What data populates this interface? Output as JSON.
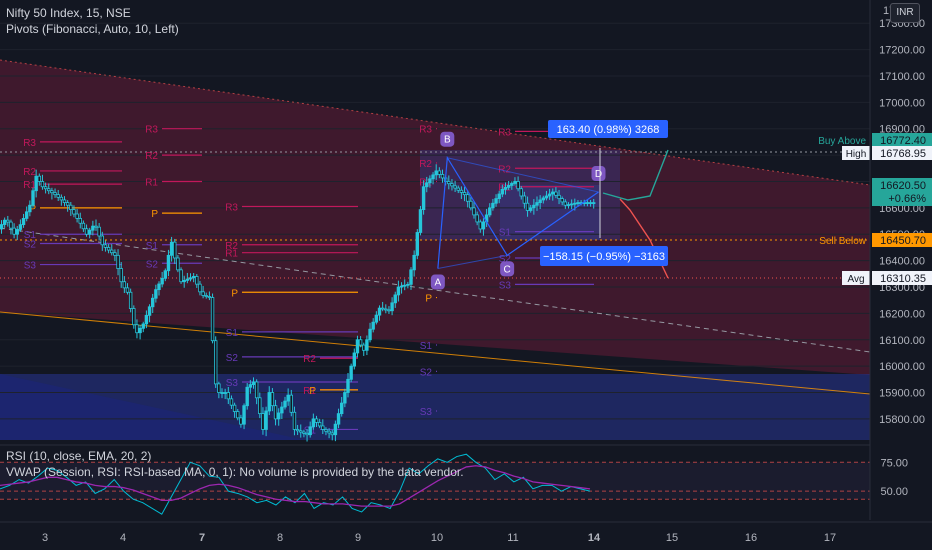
{
  "header": {
    "symbol_line": "Nifty 50 Index, 15, NSE",
    "indicator_line": "Pivots (Fibonacci, Auto, 10, Left)",
    "currency_button": "INR"
  },
  "colors": {
    "background": "#131722",
    "candle": "#26c6da",
    "pivot_R": "#c2185b",
    "pivot_S": "#673ab7",
    "pivot_P": "#ff9800",
    "rsi": "#00bcd4",
    "rsi_ma": "#9c27b0",
    "channel_fill": "#5d1a35",
    "band_fill": "#283593",
    "forecast_up": "#26a69a",
    "forecast_down": "#ef5350",
    "measure": "#2962ff"
  },
  "chart_data": [
    {
      "type": "line",
      "subtype": "candlestick",
      "title": "Nifty 50 Index, 15, NSE",
      "x_tick_labels": [
        "3",
        "4",
        "7",
        "8",
        "9",
        "10",
        "11",
        "14",
        "15",
        "16",
        "17"
      ],
      "y_tick_labels": [
        "15800.00",
        "15900.00",
        "16000.00",
        "16100.00",
        "16200.00",
        "16300.00",
        "16400.00",
        "16500.00",
        "16600.00",
        "16700.00",
        "16800.00",
        "16900.00",
        "17000.00",
        "17100.00",
        "17200.00",
        "17300.00"
      ],
      "y_top_partial_label": "17",
      "ylim": [
        15720,
        17350
      ],
      "price_path": {
        "x": [
          0,
          1.2,
          2.5,
          3.6,
          5.0,
          6.0,
          7.0,
          9.0,
          10.0,
          11.0,
          12.8,
          14.0,
          15.3,
          16.5,
          18.5,
          19.6,
          20.5,
          21.8,
          23.0,
          25.0,
          26.4,
          27.0,
          27.5,
          28.0,
          29.0,
          31.0,
          32.2,
          33.5,
          34.6,
          36.0,
          38.5,
          39.5,
          40.5,
          42.0,
          43.0,
          44.0,
          46.0,
          47.0,
          49.0,
          50.0,
          51.5,
          53.0,
          55.0,
          57.0,
          58.0,
          59.0,
          60.5,
          62.0,
          63.5,
          65.0,
          66.0,
          67.5,
          69.5,
          71.0,
          72.2,
          74.0,
          75.0,
          76.5,
          78.0,
          80.0,
          82.0,
          84.0,
          86.0,
          88.0,
          90.0,
          92.0,
          94.0
        ],
        "y": [
          16520,
          16560,
          16500,
          16540,
          16610,
          16720,
          16680,
          16650,
          16630,
          16610,
          16550,
          16500,
          16540,
          16460,
          16420,
          16310,
          16280,
          16120,
          16160,
          16290,
          16350,
          16420,
          16470,
          16410,
          16320,
          16340,
          16270,
          16260,
          15900,
          15900,
          15780,
          15920,
          15940,
          15760,
          15900,
          15800,
          15890,
          15760,
          15740,
          15800,
          15760,
          15740,
          15900,
          16100,
          16060,
          16140,
          16220,
          16210,
          16300,
          16310,
          16420,
          16680,
          16740,
          16700,
          16680,
          16650,
          16600,
          16520,
          16600,
          16670,
          16700,
          16590,
          16630,
          16660,
          16610,
          16620,
          16620
        ]
      },
      "price_labels": [
        {
          "label": "Buy Above",
          "value": 16772.4,
          "text": "16772.40"
        },
        {
          "label": "High",
          "value": 16768.95,
          "text": "16768.95"
        },
        {
          "label": "Last",
          "value": 16620.5,
          "text": "16620.50",
          "change": "+0.66%"
        },
        {
          "label": "Sell Below",
          "value": 16450.7,
          "text": "16450.70"
        },
        {
          "label": "Avg",
          "value": 16310.35,
          "text": "16310.35"
        }
      ],
      "pivot_levels": [
        {
          "day": "3-left",
          "R3": 16850,
          "R2": 16740,
          "R1": 16690,
          "P": 16600,
          "S1": 16500,
          "S2": 16465,
          "S3": 16385
        },
        {
          "day": "4",
          "R3": 16900,
          "R2": 16800,
          "R1": 16700,
          "P": 16580,
          "S2": 16390,
          "S1": 16460
        },
        {
          "day": "7",
          "R3": 16605,
          "R2": 16460,
          "R1": 16430,
          "P": 16280,
          "S1": 16130,
          "S2": 16035,
          "S3": 15940
        },
        {
          "day": "8",
          "R2": 16030,
          "R1": 15910,
          "P": 15910,
          "S1": 15760
        },
        {
          "day": "9-10",
          "R3": 16900,
          "R2": 16770,
          "R1": 16700,
          "P": 16260,
          "S1": 16080,
          "S2": 15980,
          "S3": 15830
        },
        {
          "day": "10-11",
          "R3": 16890,
          "R2": 16750,
          "R1": 16680,
          "S1": 16510,
          "S2": 16410,
          "S3": 16310
        }
      ],
      "points": [
        {
          "label": "A",
          "x": 69.5,
          "y": 16370
        },
        {
          "label": "B",
          "x": 71.0,
          "y": 16790
        },
        {
          "label": "C",
          "x": 80.5,
          "y": 16420
        },
        {
          "label": "D",
          "x": 95.0,
          "y": 16660
        }
      ],
      "measurements": [
        {
          "text": "163.40 (0.98%) 3268",
          "direction": "up"
        },
        {
          "text": "−158.15 (−0.95%) −3163",
          "direction": "down"
        }
      ]
    },
    {
      "type": "line",
      "title": "RSI (10, close, EMA, 20, 2)",
      "subtitle": "VWAP (Session, RSI: RSI-based MA, 0, 1): No volume is provided by the data vendor.",
      "y_tick_labels": [
        "75.00",
        "50.00"
      ],
      "ylim": [
        25,
        90
      ],
      "reference_lines": [
        75,
        50,
        43
      ],
      "series": [
        {
          "name": "RSI",
          "values": [
            52,
            55,
            60,
            57,
            63,
            70,
            68,
            62,
            55,
            58,
            48,
            52,
            60,
            50,
            43,
            40,
            35,
            30,
            45,
            60,
            75,
            72,
            63,
            62,
            50,
            48,
            45,
            40,
            42,
            38,
            45,
            40,
            48,
            35,
            40,
            38,
            45,
            35,
            32,
            40,
            38,
            35,
            50,
            70,
            65,
            72,
            78,
            75,
            80,
            82,
            75,
            70,
            60,
            65,
            58,
            62,
            52,
            55,
            55,
            50,
            54,
            52,
            50
          ]
        },
        {
          "name": "RSI-based MA",
          "values": [
            55,
            56,
            57,
            58,
            60,
            62,
            62,
            60,
            58,
            57,
            55,
            54,
            54,
            53,
            51,
            48,
            45,
            42,
            42,
            44,
            48,
            52,
            55,
            56,
            55,
            53,
            50,
            47,
            45,
            43,
            42,
            41,
            41,
            40,
            39,
            39,
            39,
            38,
            37,
            37,
            37,
            37,
            39,
            44,
            49,
            54,
            59,
            63,
            67,
            71,
            72,
            71,
            68,
            66,
            63,
            61,
            58,
            57,
            56,
            55,
            54,
            53,
            52
          ]
        }
      ]
    }
  ]
}
